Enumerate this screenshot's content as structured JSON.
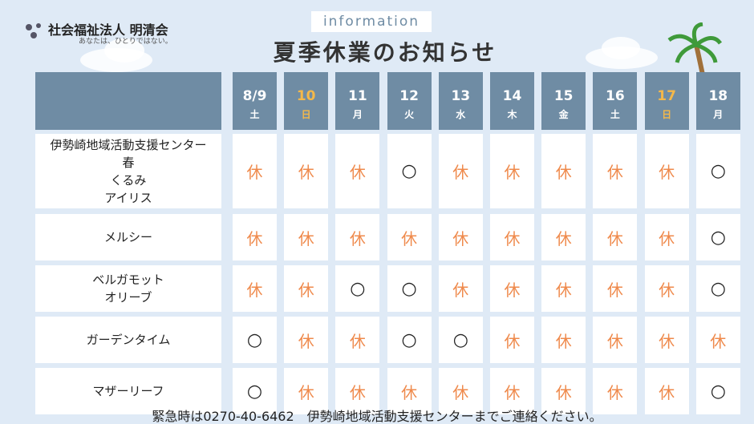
{
  "header": {
    "org": "社会福祉法人 明清会",
    "tagline": "あなたは、ひとりではない。",
    "label": "information",
    "title": "夏季休業のお知らせ"
  },
  "table": {
    "columns": [
      {
        "date": "8/9",
        "day": "土",
        "color": "#ffffff"
      },
      {
        "date": "10",
        "day": "日",
        "color": "#f4b84a"
      },
      {
        "date": "11",
        "day": "月",
        "color": "#ffffff"
      },
      {
        "date": "12",
        "day": "火",
        "color": "#ffffff"
      },
      {
        "date": "13",
        "day": "水",
        "color": "#ffffff"
      },
      {
        "date": "14",
        "day": "木",
        "color": "#ffffff"
      },
      {
        "date": "15",
        "day": "金",
        "color": "#ffffff"
      },
      {
        "date": "16",
        "day": "土",
        "color": "#ffffff"
      },
      {
        "date": "17",
        "day": "日",
        "color": "#f4b84a"
      },
      {
        "date": "18",
        "day": "月",
        "color": "#ffffff"
      }
    ],
    "rows": [
      {
        "name": [
          "伊勢崎地域活動支援センター",
          "春",
          "くるみ",
          "アイリス"
        ],
        "cells": [
          "休",
          "休",
          "休",
          "○",
          "休",
          "休",
          "休",
          "休",
          "休",
          "○"
        ]
      },
      {
        "name": [
          "メルシー"
        ],
        "cells": [
          "休",
          "休",
          "休",
          "休",
          "休",
          "休",
          "休",
          "休",
          "休",
          "○"
        ]
      },
      {
        "name": [
          "ベルガモット",
          "オリーブ"
        ],
        "cells": [
          "休",
          "休",
          "○",
          "○",
          "休",
          "休",
          "休",
          "休",
          "休",
          "○"
        ]
      },
      {
        "name": [
          "ガーデンタイム"
        ],
        "cells": [
          "○",
          "休",
          "休",
          "○",
          "○",
          "休",
          "休",
          "休",
          "休",
          "休"
        ]
      },
      {
        "name": [
          "マザーリーフ"
        ],
        "cells": [
          "○",
          "休",
          "休",
          "休",
          "休",
          "休",
          "休",
          "休",
          "休",
          "○"
        ]
      }
    ]
  },
  "footer": "緊急時は0270-40-6462　伊勢崎地域活動支援センターまでご連絡ください。"
}
